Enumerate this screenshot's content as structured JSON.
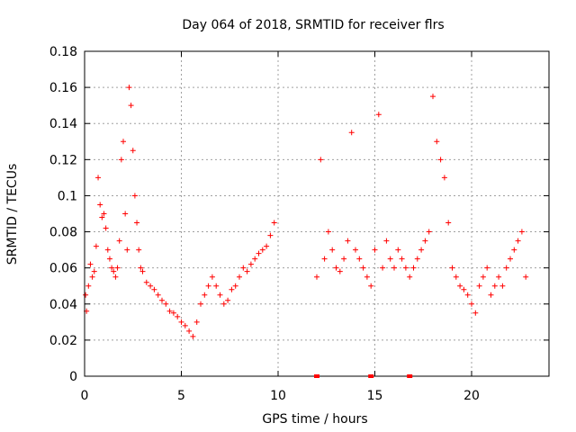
{
  "chart_data": {
    "type": "scatter",
    "title": "Day 064 of 2018, SRMTID for receiver flrs",
    "xlabel": "GPS time / hours",
    "ylabel": "SRMTID / TECUs",
    "xlim": [
      0,
      24
    ],
    "ylim": [
      0,
      0.18
    ],
    "xticks": [
      0,
      5,
      10,
      15,
      20
    ],
    "xtick_labels": [
      "0",
      "5",
      "10",
      "15",
      "20"
    ],
    "yticks": [
      0,
      0.02,
      0.04,
      0.06,
      0.08,
      0.1,
      0.12,
      0.14,
      0.16,
      0.18
    ],
    "ytick_labels": [
      "0",
      "0.02",
      "0.04",
      "0.06",
      "0.08",
      "0.1",
      "0.12",
      "0.14",
      "0.16",
      "0.18"
    ],
    "grid": true,
    "marker": "+",
    "color": "#ff0000",
    "gap_hours": [
      9.9,
      11.8
    ],
    "gap_markers": [
      12.0,
      14.8,
      16.8
    ],
    "series": [
      {
        "name": "SRMTID",
        "x": [
          0.05,
          0.1,
          0.2,
          0.3,
          0.4,
          0.5,
          0.6,
          0.7,
          0.8,
          0.9,
          1.0,
          1.1,
          1.2,
          1.3,
          1.4,
          1.5,
          1.6,
          1.7,
          1.8,
          1.9,
          2.0,
          2.1,
          2.2,
          2.3,
          2.4,
          2.5,
          2.6,
          2.7,
          2.8,
          2.9,
          3.0,
          3.2,
          3.4,
          3.6,
          3.8,
          4.0,
          4.2,
          4.4,
          4.6,
          4.8,
          5.0,
          5.2,
          5.4,
          5.6,
          5.8,
          6.0,
          6.2,
          6.4,
          6.6,
          6.8,
          7.0,
          7.2,
          7.4,
          7.6,
          7.8,
          8.0,
          8.2,
          8.4,
          8.6,
          8.8,
          9.0,
          9.2,
          9.4,
          9.6,
          9.8,
          12.0,
          12.2,
          12.4,
          12.6,
          12.8,
          13.0,
          13.2,
          13.4,
          13.6,
          13.8,
          14.0,
          14.2,
          14.4,
          14.6,
          14.8,
          15.0,
          15.2,
          15.4,
          15.6,
          15.8,
          16.0,
          16.2,
          16.4,
          16.6,
          16.8,
          17.0,
          17.2,
          17.4,
          17.6,
          17.8,
          18.0,
          18.2,
          18.4,
          18.6,
          18.8,
          19.0,
          19.2,
          19.4,
          19.6,
          19.8,
          20.0,
          20.2,
          20.4,
          20.6,
          20.8,
          21.0,
          21.2,
          21.4,
          21.6,
          21.8,
          22.0,
          22.2,
          22.4,
          22.6,
          22.8
        ],
        "y": [
          0.045,
          0.036,
          0.05,
          0.062,
          0.055,
          0.058,
          0.072,
          0.11,
          0.095,
          0.088,
          0.09,
          0.082,
          0.07,
          0.065,
          0.06,
          0.058,
          0.055,
          0.06,
          0.075,
          0.12,
          0.13,
          0.09,
          0.07,
          0.16,
          0.15,
          0.125,
          0.1,
          0.085,
          0.07,
          0.06,
          0.058,
          0.052,
          0.05,
          0.048,
          0.045,
          0.042,
          0.04,
          0.036,
          0.035,
          0.033,
          0.03,
          0.028,
          0.025,
          0.022,
          0.03,
          0.04,
          0.045,
          0.05,
          0.055,
          0.05,
          0.045,
          0.04,
          0.042,
          0.048,
          0.05,
          0.055,
          0.06,
          0.058,
          0.062,
          0.065,
          0.068,
          0.07,
          0.072,
          0.078,
          0.085,
          0.055,
          0.12,
          0.065,
          0.08,
          0.07,
          0.06,
          0.058,
          0.065,
          0.075,
          0.135,
          0.07,
          0.065,
          0.06,
          0.055,
          0.05,
          0.07,
          0.145,
          0.06,
          0.075,
          0.065,
          0.06,
          0.07,
          0.065,
          0.06,
          0.055,
          0.06,
          0.065,
          0.07,
          0.075,
          0.08,
          0.155,
          0.13,
          0.12,
          0.11,
          0.085,
          0.06,
          0.055,
          0.05,
          0.048,
          0.045,
          0.04,
          0.035,
          0.05,
          0.055,
          0.06,
          0.045,
          0.05,
          0.055,
          0.05,
          0.06,
          0.065,
          0.07,
          0.075,
          0.08,
          0.055
        ]
      }
    ]
  }
}
